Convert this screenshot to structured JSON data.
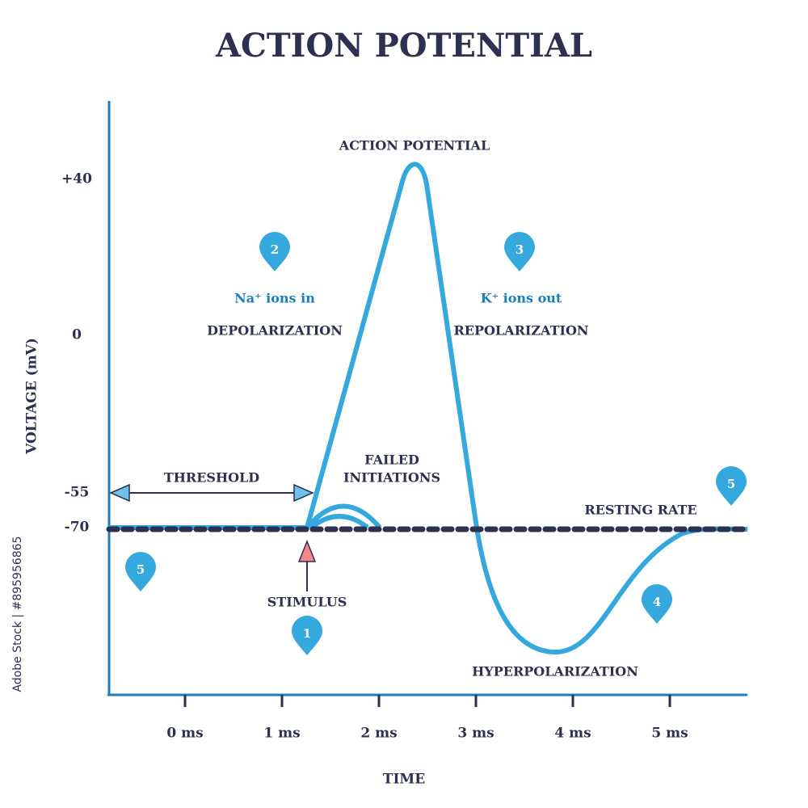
{
  "title": "ACTION POTENTIAL",
  "y_axis": {
    "label": "VOLTAGE (mV)",
    "ticks": [
      "+40",
      "0",
      "-55",
      "-70"
    ]
  },
  "x_axis": {
    "label": "TIME",
    "ticks": [
      "0 ms",
      "1 ms",
      "2 ms",
      "3 ms",
      "4 ms",
      "5 ms"
    ]
  },
  "annotations": {
    "peak": "ACTION POTENTIAL",
    "na_ions": "Na⁺ ions in",
    "depolarization": "DEPOLARIZATION",
    "k_ions": "K⁺ ions out",
    "repolarization": "REPOLARIZATION",
    "threshold": "THRESHOLD",
    "failed_initiations": [
      "FAILED",
      "INITIATIONS"
    ],
    "resting_rate": "RESTING RATE",
    "stimulus": "STIMULUS",
    "hyperpolarization": "HYPERPOLARIZATION"
  },
  "markers": [
    "1",
    "2",
    "3",
    "4",
    "5",
    "5"
  ],
  "watermark": "Adobe Stock | #895956865"
}
